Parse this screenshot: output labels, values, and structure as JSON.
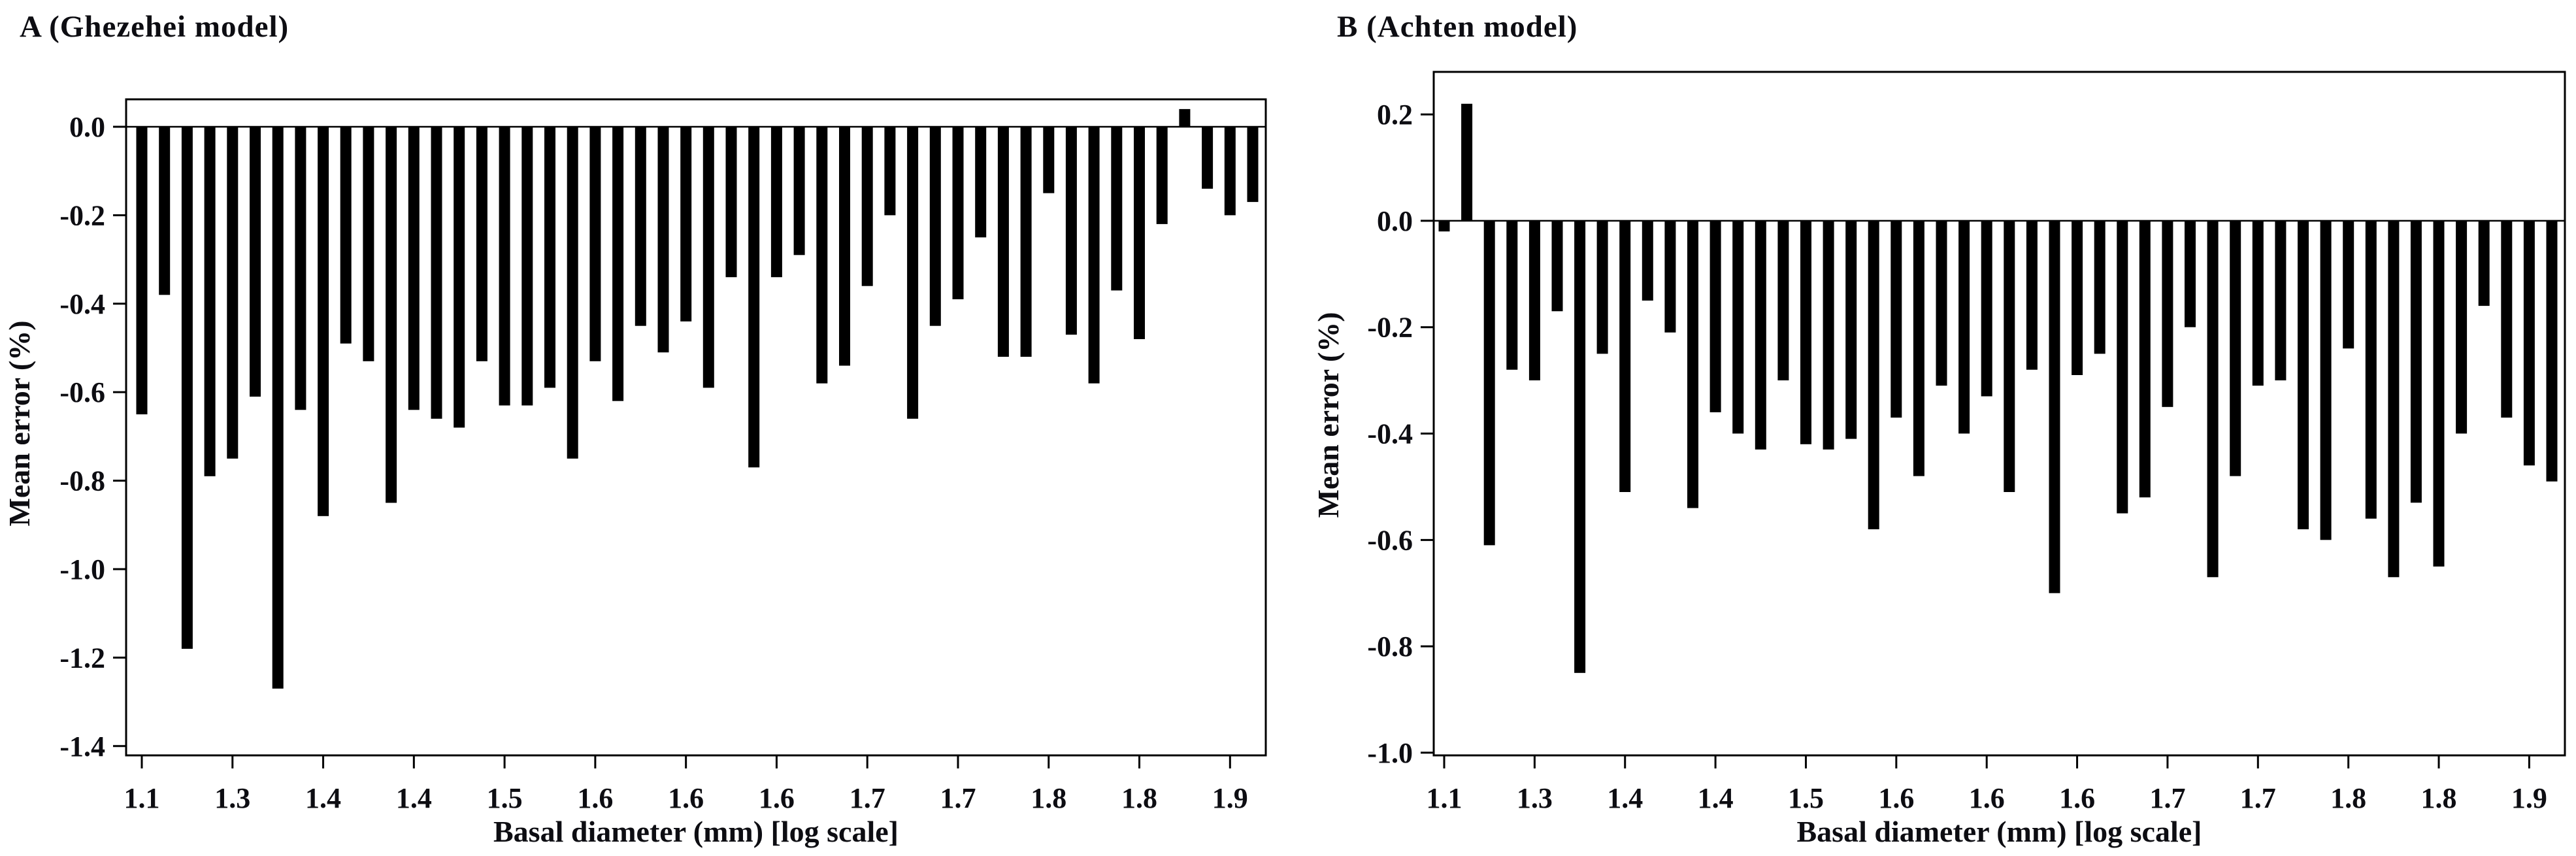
{
  "figure": {
    "background_color": "#ffffff",
    "bar_color": "#000000",
    "axis_color": "#000000"
  },
  "chart_data": [
    {
      "type": "bar",
      "panel_label": "A",
      "title": "A (Ghezehei model)",
      "xlabel": "Basal diameter (mm) [log scale]",
      "ylabel": "Mean error (%)",
      "x_scale": "log",
      "grid": false,
      "legend": "none",
      "ylim": [
        0.062,
        -1.421
      ],
      "y_tick_values": [
        0.0,
        -0.2,
        -0.4,
        -0.6,
        -0.8,
        -1.0,
        -1.2,
        -1.4
      ],
      "y_tick_labels": [
        "0.0",
        "-0.2",
        "-0.4",
        "-0.6",
        "-0.8",
        "-1.0",
        "-1.2",
        "-1.4"
      ],
      "x_tick_labels": [
        "1.1",
        "1.3",
        "1.4",
        "1.4",
        "1.5",
        "1.6",
        "1.6",
        "1.6",
        "1.7",
        "1.7",
        "1.8",
        "1.8",
        "1.9"
      ],
      "x_tick_bar_indices": [
        0,
        4,
        8,
        12,
        16,
        20,
        24,
        28,
        32,
        36,
        40,
        44,
        48
      ],
      "values": [
        -0.65,
        -0.38,
        -1.18,
        -0.79,
        -0.75,
        -0.61,
        -1.27,
        -0.64,
        -0.88,
        -0.49,
        -0.53,
        -0.85,
        -0.64,
        -0.66,
        -0.68,
        -0.53,
        -0.63,
        -0.63,
        -0.59,
        -0.75,
        -0.53,
        -0.62,
        -0.45,
        -0.51,
        -0.44,
        -0.59,
        -0.34,
        -0.77,
        -0.34,
        -0.29,
        -0.58,
        -0.54,
        -0.36,
        -0.2,
        -0.66,
        -0.45,
        -0.39,
        -0.25,
        -0.52,
        -0.52,
        -0.15,
        -0.47,
        -0.58,
        -0.37,
        -0.48,
        -0.22,
        0.04,
        -0.14,
        -0.2,
        -0.17
      ]
    },
    {
      "type": "bar",
      "panel_label": "B",
      "title": "B (Achten model)",
      "xlabel": "Basal diameter (mm) [log scale]",
      "ylabel": "Mean error (%)",
      "x_scale": "log",
      "grid": false,
      "legend": "none",
      "ylim": [
        0.28,
        -1.005
      ],
      "y_tick_values": [
        0.2,
        0.0,
        -0.2,
        -0.4,
        -0.6,
        -0.8,
        -1.0
      ],
      "y_tick_labels": [
        "0.2",
        "0.0",
        "-0.2",
        "-0.4",
        "-0.6",
        "-0.8",
        "-1.0"
      ],
      "x_tick_labels": [
        "1.1",
        "1.3",
        "1.4",
        "1.4",
        "1.5",
        "1.6",
        "1.6",
        "1.6",
        "1.7",
        "1.7",
        "1.8",
        "1.8",
        "1.9"
      ],
      "x_tick_bar_indices": [
        0,
        4,
        8,
        12,
        16,
        20,
        24,
        28,
        32,
        36,
        40,
        44,
        48
      ],
      "values": [
        -0.02,
        0.22,
        -0.61,
        -0.28,
        -0.3,
        -0.17,
        -0.85,
        -0.25,
        -0.51,
        -0.15,
        -0.21,
        -0.54,
        -0.36,
        -0.4,
        -0.43,
        -0.3,
        -0.42,
        -0.43,
        -0.41,
        -0.58,
        -0.37,
        -0.48,
        -0.31,
        -0.4,
        -0.33,
        -0.51,
        -0.28,
        -0.7,
        -0.29,
        -0.25,
        -0.55,
        -0.52,
        -0.35,
        -0.2,
        -0.67,
        -0.48,
        -0.31,
        -0.3,
        -0.58,
        -0.6,
        -0.24,
        -0.56,
        -0.67,
        -0.53,
        -0.65,
        -0.4,
        -0.16,
        -0.37,
        -0.46,
        -0.49
      ]
    }
  ]
}
